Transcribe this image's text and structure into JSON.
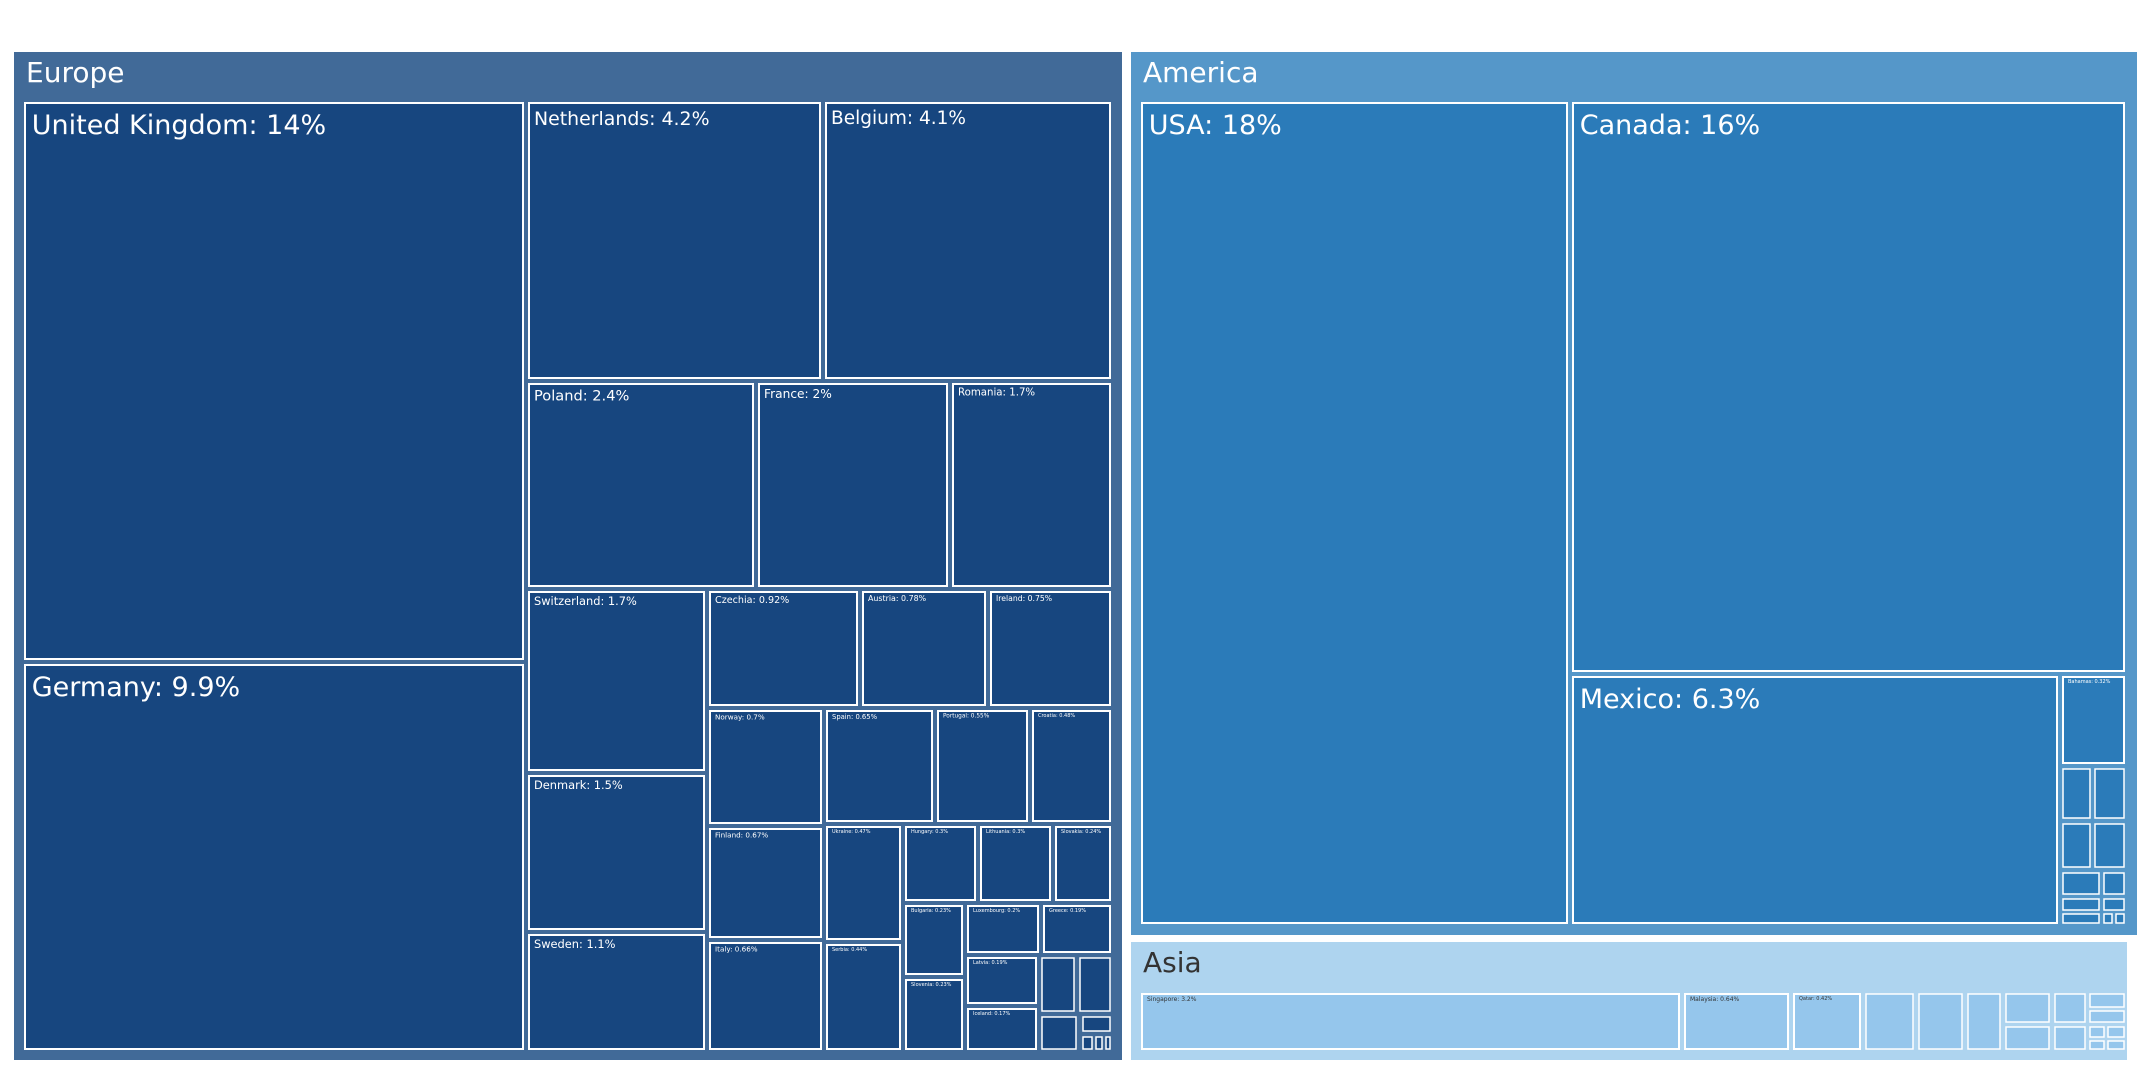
{
  "chart_data": {
    "type": "treemap",
    "unit": "%",
    "colors": {
      "Europe": {
        "bg": "#416a98",
        "tile": "#17467f"
      },
      "America": {
        "bg": "#5597c9",
        "tile": "#2b7bb9"
      },
      "Asia": {
        "bg": "#aed4ef",
        "tile": "#95c6ec"
      },
      "border": "#ffffff"
    },
    "groups": [
      {
        "name": "Europe",
        "items": [
          {
            "name": "United Kingdom",
            "value": 14
          },
          {
            "name": "Germany",
            "value": 9.9
          },
          {
            "name": "Netherlands",
            "value": 4.2
          },
          {
            "name": "Belgium",
            "value": 4.1
          },
          {
            "name": "Poland",
            "value": 2.4
          },
          {
            "name": "France",
            "value": 2
          },
          {
            "name": "Romania",
            "value": 1.7
          },
          {
            "name": "Switzerland",
            "value": 1.7
          },
          {
            "name": "Denmark",
            "value": 1.5
          },
          {
            "name": "Sweden",
            "value": 1.1
          },
          {
            "name": "Czechia",
            "value": 0.92
          },
          {
            "name": "Austria",
            "value": 0.78
          },
          {
            "name": "Ireland",
            "value": 0.75
          },
          {
            "name": "Norway",
            "value": 0.7
          },
          {
            "name": "Finland",
            "value": 0.67
          },
          {
            "name": "Italy",
            "value": 0.66
          },
          {
            "name": "Spain",
            "value": 0.65
          },
          {
            "name": "Portugal",
            "value": 0.55
          },
          {
            "name": "Croatia",
            "value": 0.48
          },
          {
            "name": "Ukraine",
            "value": 0.47
          },
          {
            "name": "Serbia",
            "value": 0.44
          },
          {
            "name": "Hungary",
            "value": 0.3
          },
          {
            "name": "Lithuania",
            "value": 0.3
          },
          {
            "name": "Slovakia",
            "value": 0.24
          },
          {
            "name": "Bulgaria",
            "value": 0.23
          },
          {
            "name": "Slovenia",
            "value": 0.23
          },
          {
            "name": "Luxembourg",
            "value": 0.2
          },
          {
            "name": "Greece",
            "value": 0.19
          },
          {
            "name": "Latvia",
            "value": 0.19
          },
          {
            "name": "Iceland",
            "value": 0.17
          }
        ]
      },
      {
        "name": "America",
        "items": [
          {
            "name": "USA",
            "value": 18
          },
          {
            "name": "Canada",
            "value": 16
          },
          {
            "name": "Mexico",
            "value": 6.3
          },
          {
            "name": "Bahamas",
            "value": 0.32
          }
        ]
      },
      {
        "name": "Asia",
        "items": [
          {
            "name": "Singapore",
            "value": 3.2
          },
          {
            "name": "Malaysia",
            "value": 0.64
          },
          {
            "name": "Qatar",
            "value": 0.42
          }
        ]
      }
    ]
  }
}
